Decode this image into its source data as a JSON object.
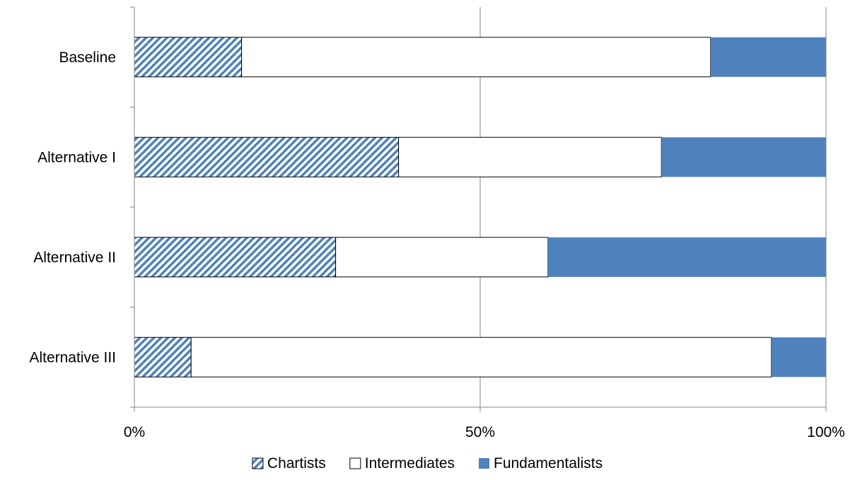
{
  "chart_data": {
    "type": "bar",
    "orientation": "horizontal",
    "stacked": true,
    "percent_stacked": true,
    "categories": [
      "Baseline",
      "Alternative I",
      "Alternative II",
      "Alternative III"
    ],
    "series": [
      {
        "name": "Chartists",
        "values": [
          15.5,
          38.2,
          29.1,
          8.2
        ],
        "fill": "hatched",
        "color": "#4F81BD"
      },
      {
        "name": "Intermediates",
        "values": [
          67.8,
          38.0,
          30.7,
          83.9
        ],
        "fill": "solid",
        "color": "#FFFFFF"
      },
      {
        "name": "Fundamentalists",
        "values": [
          16.7,
          23.8,
          40.2,
          7.9
        ],
        "fill": "solid",
        "color": "#4F81BD"
      }
    ],
    "x_ticks": [
      "0%",
      "50%",
      "100%"
    ],
    "xlim": [
      0,
      100
    ],
    "title": "",
    "xlabel": "",
    "ylabel": "",
    "grid": true,
    "legend_position": "bottom"
  }
}
